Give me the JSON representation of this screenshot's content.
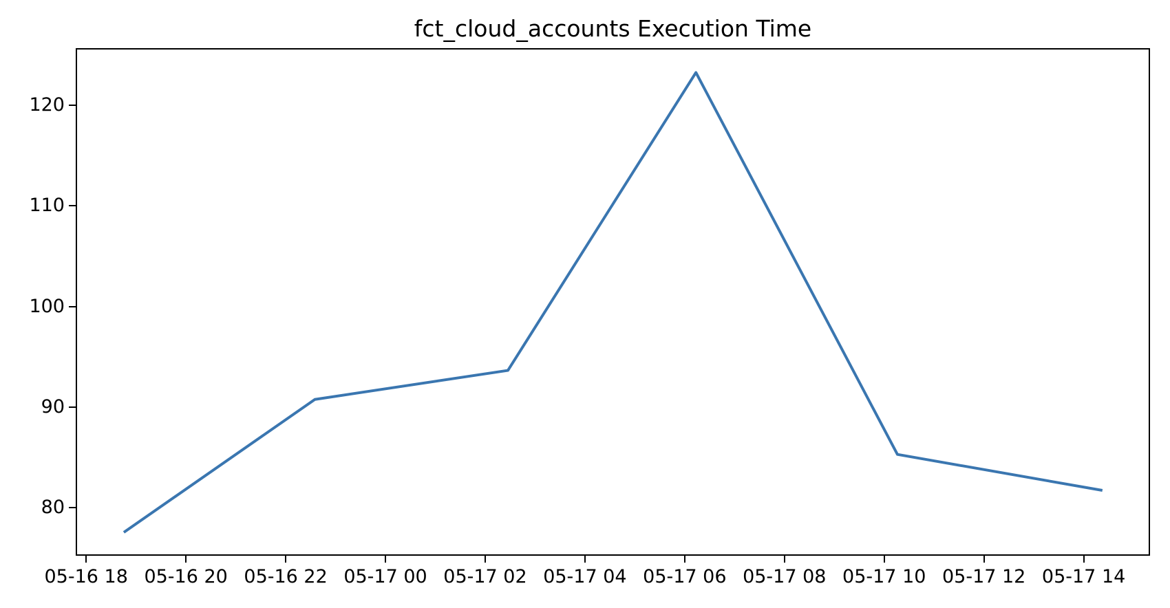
{
  "chart_data": {
    "type": "line",
    "title": "fct_cloud_accounts Execution Time",
    "xlabel": "",
    "ylabel": "",
    "grid": false,
    "legend": null,
    "line_color": "#3a76b0",
    "text_color": "#000000",
    "xlim_hours": [
      -0.21,
      21.33
    ],
    "ylim": [
      75.2,
      125.7
    ],
    "x_axis_origin": "05-16 18:00",
    "series": [
      {
        "name": "execution_time",
        "x_hours": [
          0.73,
          4.57,
          8.45,
          12.23,
          16.28,
          20.4
        ],
        "x_times": [
          "05-16 18:44",
          "05-16 22:34",
          "05-17 02:27",
          "05-17 06:14",
          "05-17 10:17",
          "05-17 14:24"
        ],
        "values": [
          77.4,
          90.7,
          93.6,
          123.4,
          85.2,
          81.6
        ]
      }
    ],
    "x_ticks": [
      {
        "hour": 0,
        "label": "05-16 18"
      },
      {
        "hour": 2,
        "label": "05-16 20"
      },
      {
        "hour": 4,
        "label": "05-16 22"
      },
      {
        "hour": 6,
        "label": "05-17 00"
      },
      {
        "hour": 8,
        "label": "05-17 02"
      },
      {
        "hour": 10,
        "label": "05-17 04"
      },
      {
        "hour": 12,
        "label": "05-17 06"
      },
      {
        "hour": 14,
        "label": "05-17 08"
      },
      {
        "hour": 16,
        "label": "05-17 10"
      },
      {
        "hour": 18,
        "label": "05-17 12"
      },
      {
        "hour": 20,
        "label": "05-17 14"
      }
    ],
    "y_ticks": [
      80,
      90,
      100,
      110,
      120
    ]
  }
}
